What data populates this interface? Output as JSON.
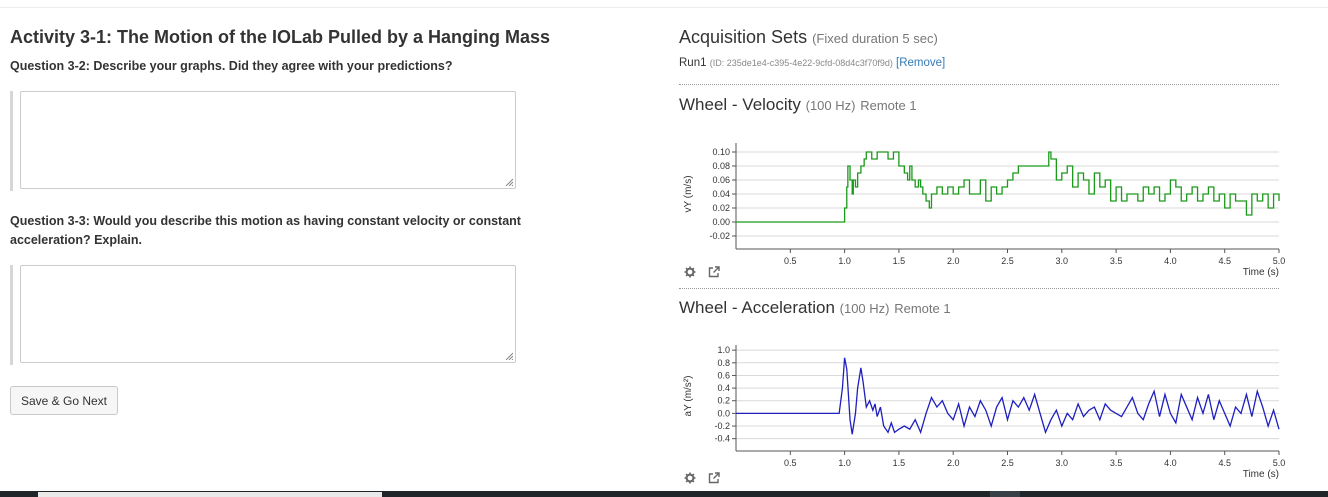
{
  "activity": {
    "title": "Activity 3-1: The Motion of the IOLab Pulled by a Hanging Mass",
    "question1": "Question 3-2: Describe your graphs. Did they agree with your predictions?",
    "question2": "Question 3-3: Would you describe this motion as having constant velocity or constant acceleration? Explain.",
    "answer1": "",
    "answer2": "",
    "save_label": "Save & Go Next"
  },
  "acquisition": {
    "title": "Acquisition Sets",
    "subtitle": "(Fixed duration 5 sec)",
    "run_label": "Run1",
    "run_id": "(ID: 235de1e4-c395-4e22-9cfd-08d4c3f70f9d)",
    "remove_label": "[Remove]"
  },
  "icons": [
    "gear-icon",
    "external-link-icon"
  ],
  "colors": {
    "velocity": "#1a9a1a",
    "acceleration": "#1f1fbf",
    "link": "#337ab7"
  },
  "chart_data": [
    {
      "type": "line",
      "title": "Wheel - Velocity",
      "rate": "(100 Hz)",
      "source": "Remote 1",
      "xlabel": "Time (s)",
      "ylabel": "vY (m/s)",
      "xlim": [
        0,
        5.0
      ],
      "ylim": [
        -0.03,
        0.11
      ],
      "xticks": [
        "0.5",
        "1.0",
        "1.5",
        "2.0",
        "2.5",
        "3.0",
        "3.5",
        "4.0",
        "4.5",
        "5.0"
      ],
      "yticks": [
        "0.10",
        "0.08",
        "0.06",
        "0.04",
        "0.02",
        "0.00",
        "-0.02"
      ],
      "grid": true,
      "color": "#1a9a1a",
      "series": [
        {
          "x": [
            0,
            0.98,
            1.0,
            1.02,
            1.03,
            1.05,
            1.07,
            1.08,
            1.1,
            1.12,
            1.15,
            1.18,
            1.2,
            1.22,
            1.25,
            1.3,
            1.35,
            1.4,
            1.45,
            1.5,
            1.52,
            1.55,
            1.58,
            1.6,
            1.62,
            1.65,
            1.68,
            1.7,
            1.72,
            1.75,
            1.78,
            1.8,
            1.85,
            1.9,
            1.95,
            2.0,
            2.05,
            2.1,
            2.15,
            2.2,
            2.25,
            2.3,
            2.35,
            2.4,
            2.45,
            2.5,
            2.55,
            2.6,
            2.65,
            2.7,
            2.75,
            2.8,
            2.85,
            2.88,
            2.9,
            2.95,
            3.0,
            3.05,
            3.1,
            3.15,
            3.2,
            3.25,
            3.3,
            3.35,
            3.4,
            3.45,
            3.5,
            3.55,
            3.6,
            3.65,
            3.7,
            3.75,
            3.8,
            3.85,
            3.9,
            3.95,
            4.0,
            4.05,
            4.1,
            4.15,
            4.2,
            4.25,
            4.3,
            4.35,
            4.4,
            4.45,
            4.5,
            4.55,
            4.6,
            4.65,
            4.7,
            4.75,
            4.8,
            4.85,
            4.9,
            4.95,
            5.0
          ],
          "y": [
            0,
            0,
            0.02,
            0.05,
            0.08,
            0.06,
            0.04,
            0.06,
            0.05,
            0.07,
            0.08,
            0.09,
            0.1,
            0.1,
            0.09,
            0.1,
            0.1,
            0.09,
            0.1,
            0.08,
            0.08,
            0.07,
            0.06,
            0.08,
            0.06,
            0.05,
            0.06,
            0.05,
            0.04,
            0.03,
            0.02,
            0.04,
            0.05,
            0.04,
            0.05,
            0.04,
            0.05,
            0.06,
            0.04,
            0.04,
            0.06,
            0.03,
            0.05,
            0.04,
            0.05,
            0.06,
            0.07,
            0.08,
            0.08,
            0.08,
            0.08,
            0.08,
            0.08,
            0.1,
            0.09,
            0.06,
            0.07,
            0.08,
            0.05,
            0.07,
            0.06,
            0.04,
            0.07,
            0.05,
            0.06,
            0.03,
            0.05,
            0.03,
            0.04,
            0.04,
            0.03,
            0.05,
            0.04,
            0.05,
            0.03,
            0.04,
            0.06,
            0.05,
            0.03,
            0.04,
            0.05,
            0.03,
            0.04,
            0.05,
            0.03,
            0.04,
            0.02,
            0.04,
            0.03,
            0.03,
            0.01,
            0.04,
            0.03,
            0.04,
            0.02,
            0.04,
            0.03
          ]
        }
      ]
    },
    {
      "type": "line",
      "title": "Wheel - Acceleration",
      "rate": "(100 Hz)",
      "source": "Remote 1",
      "xlabel": "Time (s)",
      "ylabel": "aY (m/s²)",
      "xlim": [
        0,
        5.0
      ],
      "ylim": [
        -0.5,
        1.05
      ],
      "xticks": [
        "0.5",
        "1.0",
        "1.5",
        "2.0",
        "2.5",
        "3.0",
        "3.5",
        "4.0",
        "4.5",
        "5.0"
      ],
      "yticks": [
        "1.0",
        "0.8",
        "0.6",
        "0.4",
        "0.2",
        "0.0",
        "-0.2",
        "-0.4"
      ],
      "grid": true,
      "color": "#1f1fbf",
      "series": [
        {
          "x": [
            0,
            0.95,
            0.98,
            1.0,
            1.02,
            1.05,
            1.07,
            1.1,
            1.12,
            1.15,
            1.17,
            1.2,
            1.23,
            1.26,
            1.28,
            1.3,
            1.33,
            1.36,
            1.4,
            1.43,
            1.46,
            1.5,
            1.55,
            1.6,
            1.65,
            1.7,
            1.75,
            1.8,
            1.85,
            1.9,
            1.95,
            2.0,
            2.05,
            2.1,
            2.15,
            2.2,
            2.25,
            2.3,
            2.35,
            2.4,
            2.45,
            2.5,
            2.55,
            2.6,
            2.65,
            2.7,
            2.75,
            2.8,
            2.85,
            2.9,
            2.95,
            3.0,
            3.05,
            3.1,
            3.15,
            3.2,
            3.25,
            3.3,
            3.35,
            3.4,
            3.45,
            3.5,
            3.55,
            3.6,
            3.65,
            3.7,
            3.75,
            3.8,
            3.85,
            3.9,
            3.95,
            4.0,
            4.05,
            4.1,
            4.15,
            4.2,
            4.25,
            4.3,
            4.35,
            4.4,
            4.45,
            4.5,
            4.55,
            4.6,
            4.65,
            4.7,
            4.75,
            4.8,
            4.85,
            4.9,
            4.95,
            5.0
          ],
          "y": [
            0,
            0,
            0.4,
            0.88,
            0.7,
            -0.1,
            -0.33,
            0.0,
            0.4,
            0.72,
            0.5,
            0.1,
            0.2,
            0.05,
            0.15,
            -0.05,
            0.1,
            -0.2,
            -0.3,
            -0.15,
            -0.3,
            -0.25,
            -0.2,
            -0.25,
            -0.1,
            -0.3,
            0.0,
            0.25,
            0.1,
            0.2,
            0.0,
            -0.1,
            0.15,
            -0.2,
            0.1,
            -0.05,
            0.2,
            0.05,
            -0.2,
            0.1,
            0.25,
            -0.1,
            0.2,
            0.1,
            0.25,
            0.05,
            0.3,
            0.0,
            -0.3,
            -0.1,
            0.05,
            -0.2,
            0.0,
            -0.1,
            0.15,
            -0.05,
            0.05,
            0.1,
            -0.1,
            0.15,
            0.05,
            0.0,
            -0.05,
            0.1,
            0.25,
            0.0,
            -0.1,
            0.15,
            0.35,
            -0.05,
            0.3,
            0.0,
            -0.15,
            0.3,
            0.1,
            -0.1,
            0.25,
            0.0,
            0.3,
            -0.1,
            0.2,
            0.0,
            -0.2,
            0.1,
            0.0,
            0.3,
            -0.05,
            0.35,
            0.1,
            -0.2,
            0.05,
            -0.25
          ]
        }
      ]
    }
  ]
}
